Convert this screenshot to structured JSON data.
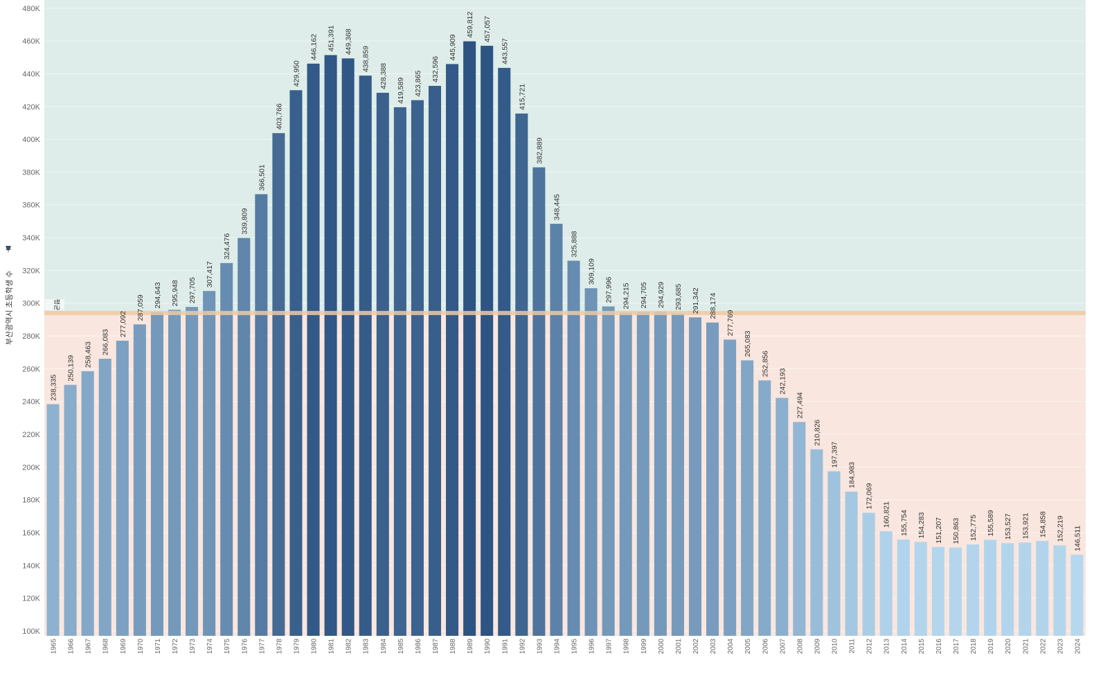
{
  "chart_data": {
    "type": "bar",
    "ylabel": "부산광역시 초등학생 수",
    "ylim": [
      97000,
      485000
    ],
    "y_ticks": [
      100000,
      120000,
      140000,
      160000,
      180000,
      200000,
      220000,
      240000,
      260000,
      280000,
      300000,
      320000,
      340000,
      360000,
      380000,
      400000,
      420000,
      440000,
      460000,
      480000
    ],
    "y_tick_labels": [
      "100K",
      "120K",
      "140K",
      "160K",
      "180K",
      "200K",
      "220K",
      "240K",
      "260K",
      "280K",
      "300K",
      "320K",
      "340K",
      "360K",
      "380K",
      "400K",
      "420K",
      "440K",
      "460K",
      "480K"
    ],
    "reference_line": {
      "label": "평균",
      "value": 294000
    },
    "grid": true,
    "legend": "none",
    "colors": {
      "above_band": "#deede9",
      "below_band": "#f9e6de",
      "reference_line": "#f0c9a2",
      "bar_low": "#b5d8ef",
      "bar_high": "#2c5382"
    },
    "categories": [
      "1965",
      "1966",
      "1967",
      "1968",
      "1969",
      "1970",
      "1971",
      "1972",
      "1973",
      "1974",
      "1975",
      "1976",
      "1977",
      "1978",
      "1979",
      "1980",
      "1981",
      "1982",
      "1983",
      "1984",
      "1985",
      "1986",
      "1987",
      "1988",
      "1989",
      "1990",
      "1991",
      "1992",
      "1993",
      "1994",
      "1995",
      "1996",
      "1997",
      "1998",
      "1999",
      "2000",
      "2001",
      "2002",
      "2003",
      "2004",
      "2005",
      "2006",
      "2007",
      "2008",
      "2009",
      "2010",
      "2011",
      "2012",
      "2013",
      "2014",
      "2015",
      "2016",
      "2017",
      "2018",
      "2019",
      "2020",
      "2021",
      "2022",
      "2023",
      "2024"
    ],
    "values": [
      238335,
      250139,
      258463,
      266083,
      277092,
      287059,
      294643,
      295948,
      297705,
      307417,
      324476,
      339809,
      366501,
      403766,
      429950,
      446162,
      451391,
      449368,
      438859,
      428388,
      419589,
      423865,
      432596,
      445909,
      459812,
      457057,
      443557,
      415721,
      382889,
      348445,
      325888,
      309109,
      297996,
      294215,
      294705,
      294929,
      293685,
      291342,
      288174,
      277769,
      265083,
      252856,
      242193,
      227494,
      210826,
      197397,
      184983,
      172069,
      160821,
      155754,
      154283,
      151207,
      150863,
      152775,
      155589,
      153527,
      153921,
      154858,
      152219,
      146511
    ],
    "labels": [
      "238,335",
      "250,139",
      "258,463",
      "266,083",
      "277,092",
      "287,059",
      "294,643",
      "295,948",
      "297,705",
      "307,417",
      "324,476",
      "339,809",
      "366,501",
      "403,766",
      "429,950",
      "446,162",
      "451,391",
      "449,368",
      "438,859",
      "428,388",
      "419,589",
      "423,865",
      "432,596",
      "445,909",
      "459,812",
      "457,057",
      "443,557",
      "415,721",
      "382,889",
      "348,445",
      "325,888",
      "309,109",
      "297,996",
      "294,215",
      "294,705",
      "294,929",
      "293,685",
      "291,342",
      "288,174",
      "277,769",
      "265,083",
      "252,856",
      "242,193",
      "227,494",
      "210,826",
      "197,397",
      "184,983",
      "172,069",
      "160,821",
      "155,754",
      "154,283",
      "151,207",
      "150,863",
      "152,775",
      "155,589",
      "153,527",
      "153,921",
      "154,858",
      "152,219",
      "146,511"
    ]
  }
}
